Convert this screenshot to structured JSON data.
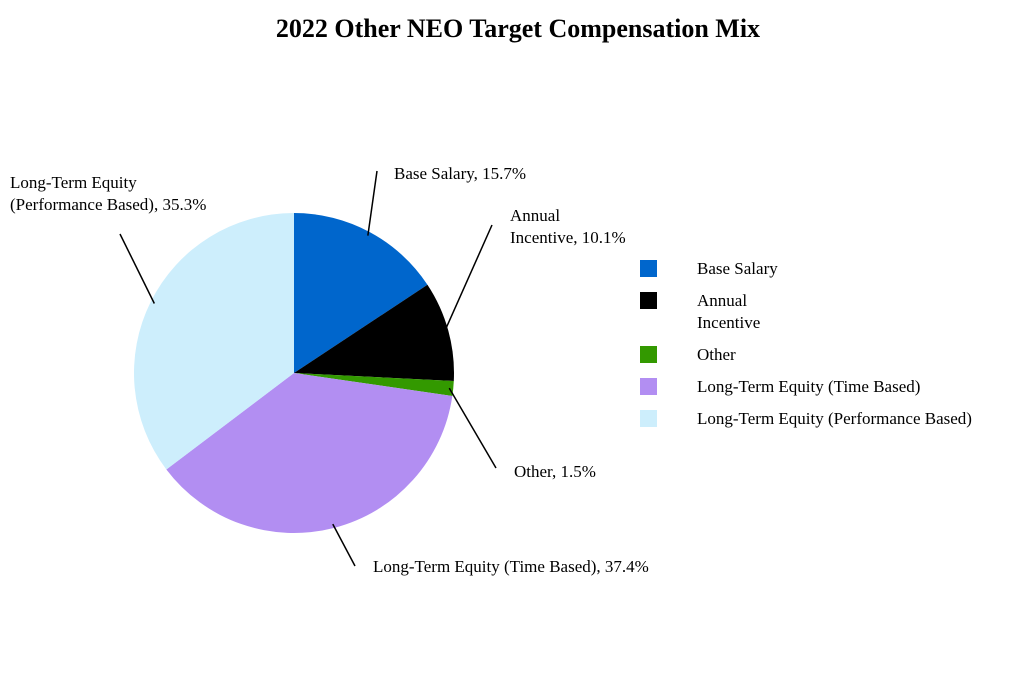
{
  "chart_data": {
    "type": "pie",
    "title": "2022 Other NEO Target Compensation Mix",
    "categories": [
      "Base Salary",
      "Annual\nIncentive",
      "Other",
      "Long-Term Equity (Time Based)",
      "Long-Term Equity (Performance Based)"
    ],
    "values": [
      15.7,
      10.1,
      1.5,
      37.4,
      35.3
    ],
    "value_labels": [
      "Base Salary, 15.7%",
      "Annual\nIncentive, 10.1%",
      "Other, 1.5%",
      "Long-Term Equity (Time Based), 37.4%",
      "Long-Term Equity\n(Performance Based), 35.3%"
    ],
    "colors": [
      "#0066cc",
      "#000000",
      "#339900",
      "#b28ef2",
      "#cdeefc"
    ],
    "legend": "right"
  }
}
